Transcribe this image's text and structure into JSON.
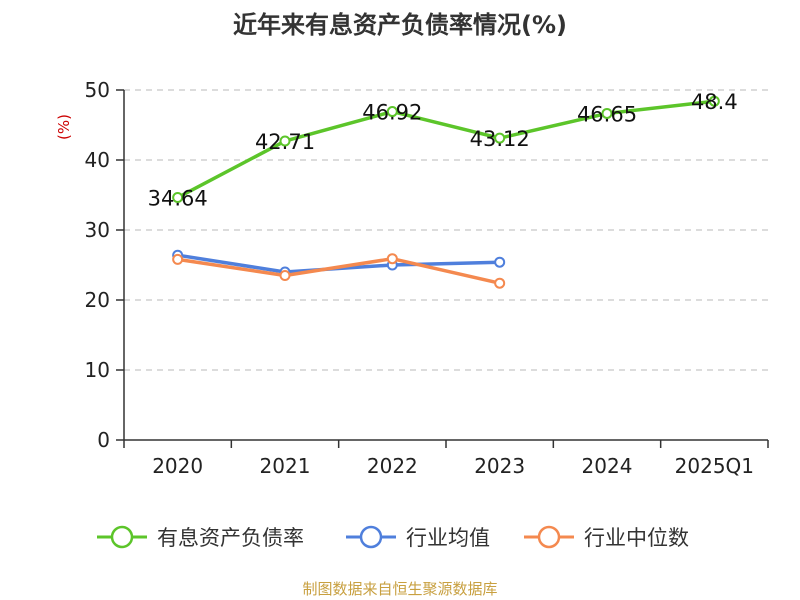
{
  "chart_data": {
    "type": "line",
    "title": "近年来有息资产负债率情况(%)",
    "ylabel": "(%)",
    "xlabel": "",
    "categories": [
      "2020",
      "2021",
      "2022",
      "2023",
      "2024",
      "2025Q1"
    ],
    "ylim": [
      0,
      50
    ],
    "yticks": [
      0,
      10,
      20,
      30,
      40,
      50
    ],
    "grid": true,
    "legend_position": "bottom",
    "series": [
      {
        "name": "有息资产负债率",
        "color": "#5cc52a",
        "values": [
          34.64,
          42.71,
          46.92,
          43.12,
          46.65,
          48.4
        ],
        "labels": [
          "34.64",
          "42.71",
          "46.92",
          "43.12",
          "46.65",
          "48.4"
        ]
      },
      {
        "name": "行业均值",
        "color": "#4f7fdc",
        "values": [
          26.4,
          24.0,
          25.0,
          25.4,
          null,
          null
        ]
      },
      {
        "name": "行业中位数",
        "color": "#f4894f",
        "values": [
          25.8,
          23.5,
          25.9,
          22.4,
          null,
          null
        ]
      }
    ],
    "source": "制图数据来自恒生聚源数据库"
  }
}
